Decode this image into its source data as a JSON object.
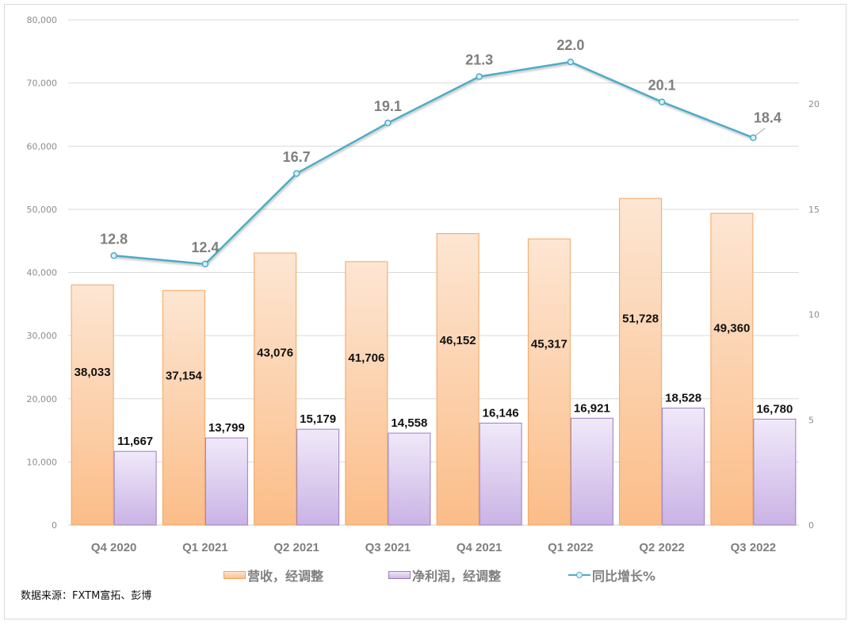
{
  "chart_data": {
    "type": "bar",
    "categories": [
      "Q4 2020",
      "Q1 2021",
      "Q2 2021",
      "Q3 2021",
      "Q4 2021",
      "Q1 2022",
      "Q2 2022",
      "Q3 2022"
    ],
    "series": [
      {
        "name": "营收，经调整",
        "type": "bar",
        "axis": "left",
        "values": [
          38033,
          37154,
          43076,
          41706,
          46152,
          45317,
          51728,
          49360
        ],
        "labels": [
          "38,033",
          "37,154",
          "43,076",
          "41,706",
          "46,152",
          "45,317",
          "51,728",
          "49,360"
        ],
        "color": "#fbc08f",
        "color_light": "#fde6d3",
        "border": "#f4a460"
      },
      {
        "name": "净利润，经调整",
        "type": "bar",
        "axis": "left",
        "values": [
          11667,
          13799,
          15179,
          14558,
          16146,
          16921,
          18528,
          16780
        ],
        "labels": [
          "11,667",
          "13,799",
          "15,179",
          "14,558",
          "16,146",
          "16,921",
          "18,528",
          "16,780"
        ],
        "color": "#cdb8e6",
        "color_light": "#f0e9f9",
        "border": "#9a7ebf"
      },
      {
        "name": "同比增长%",
        "type": "line",
        "axis": "right",
        "values": [
          12.8,
          12.4,
          16.7,
          19.1,
          21.3,
          22.0,
          20.1,
          18.4
        ],
        "labels": [
          "12.8",
          "12.4",
          "16.7",
          "19.1",
          "21.3",
          "22.0",
          "20.1",
          "18.4"
        ],
        "color": "#4bacc6"
      }
    ],
    "left_axis": {
      "ylim": [
        0,
        80000
      ],
      "ticks": [
        0,
        10000,
        20000,
        30000,
        40000,
        50000,
        60000,
        70000,
        80000
      ],
      "tick_labels": [
        "0",
        "10,000",
        "20,000",
        "30,000",
        "40,000",
        "50,000",
        "60,000",
        "70,000",
        "80,000"
      ]
    },
    "right_axis": {
      "ylim": [
        0,
        24
      ],
      "ticks": [
        0,
        5,
        10,
        15,
        20
      ],
      "tick_labels": [
        "0",
        "5",
        "10",
        "15",
        "20"
      ]
    },
    "grid": true,
    "legend_position": "bottom",
    "title": "",
    "xlabel": "",
    "ylabel": ""
  },
  "legend": {
    "items": [
      "营收，经调整",
      "净利润，经调整",
      "同比增长%"
    ]
  },
  "source_note": "数据来源：FXTM富拓、彭博"
}
